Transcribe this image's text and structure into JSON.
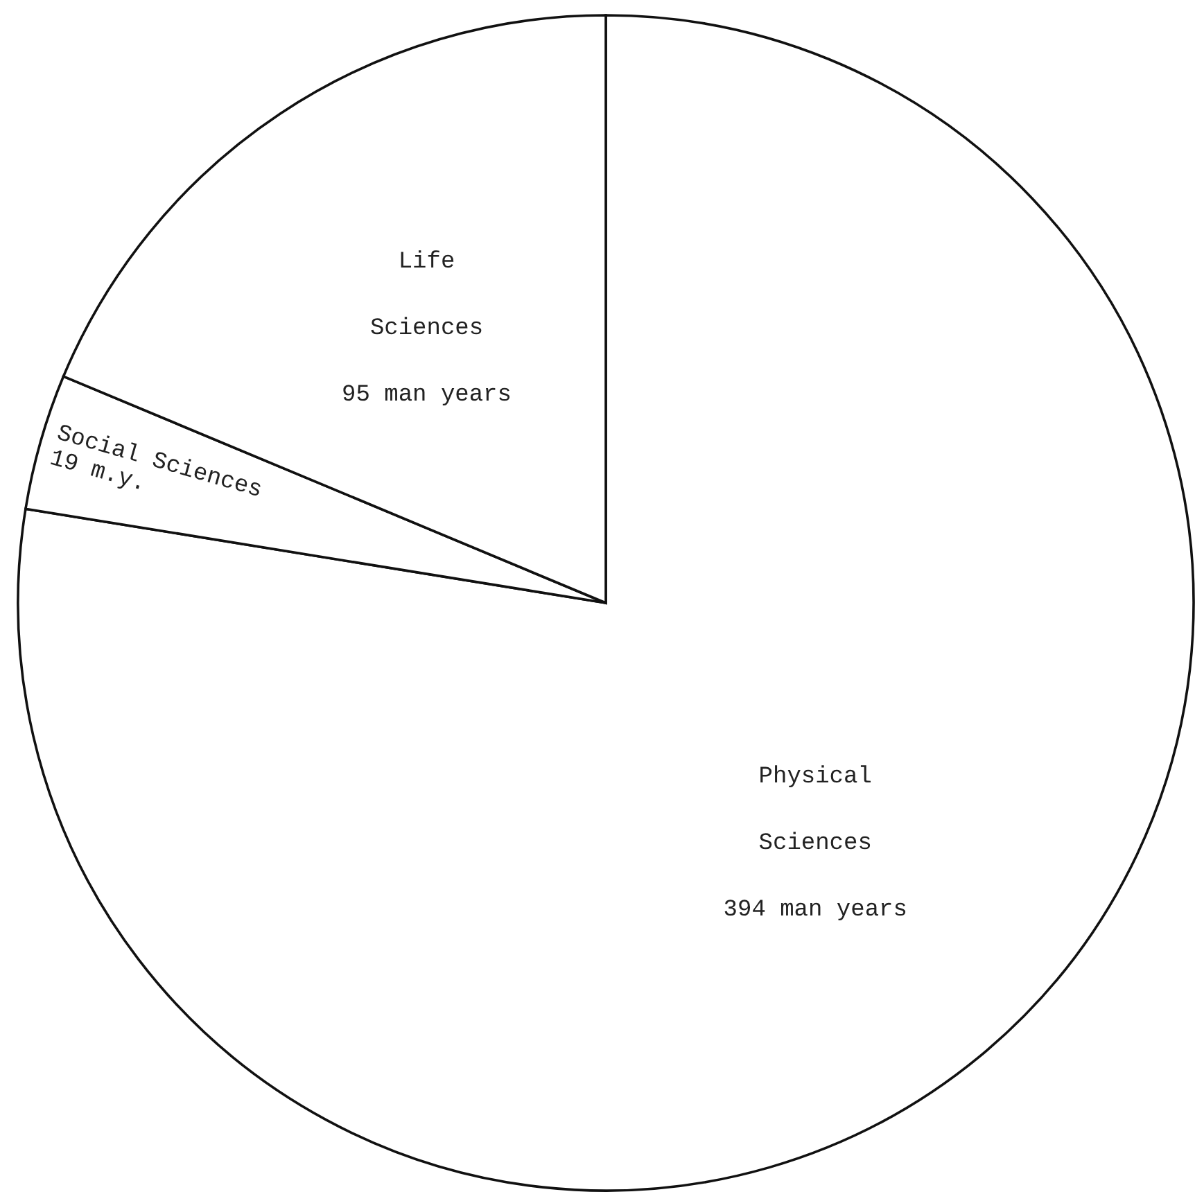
{
  "chart_data": {
    "type": "pie",
    "categories": [
      "Physical Sciences",
      "Social Sciences",
      "Life Sciences"
    ],
    "values": [
      394,
      19,
      95
    ],
    "colors": [
      "#ffffff",
      "#ffffff",
      "#ffffff"
    ],
    "value_labels": [
      "394 man years",
      "19 m.y.",
      "95 man years"
    ]
  }
}
